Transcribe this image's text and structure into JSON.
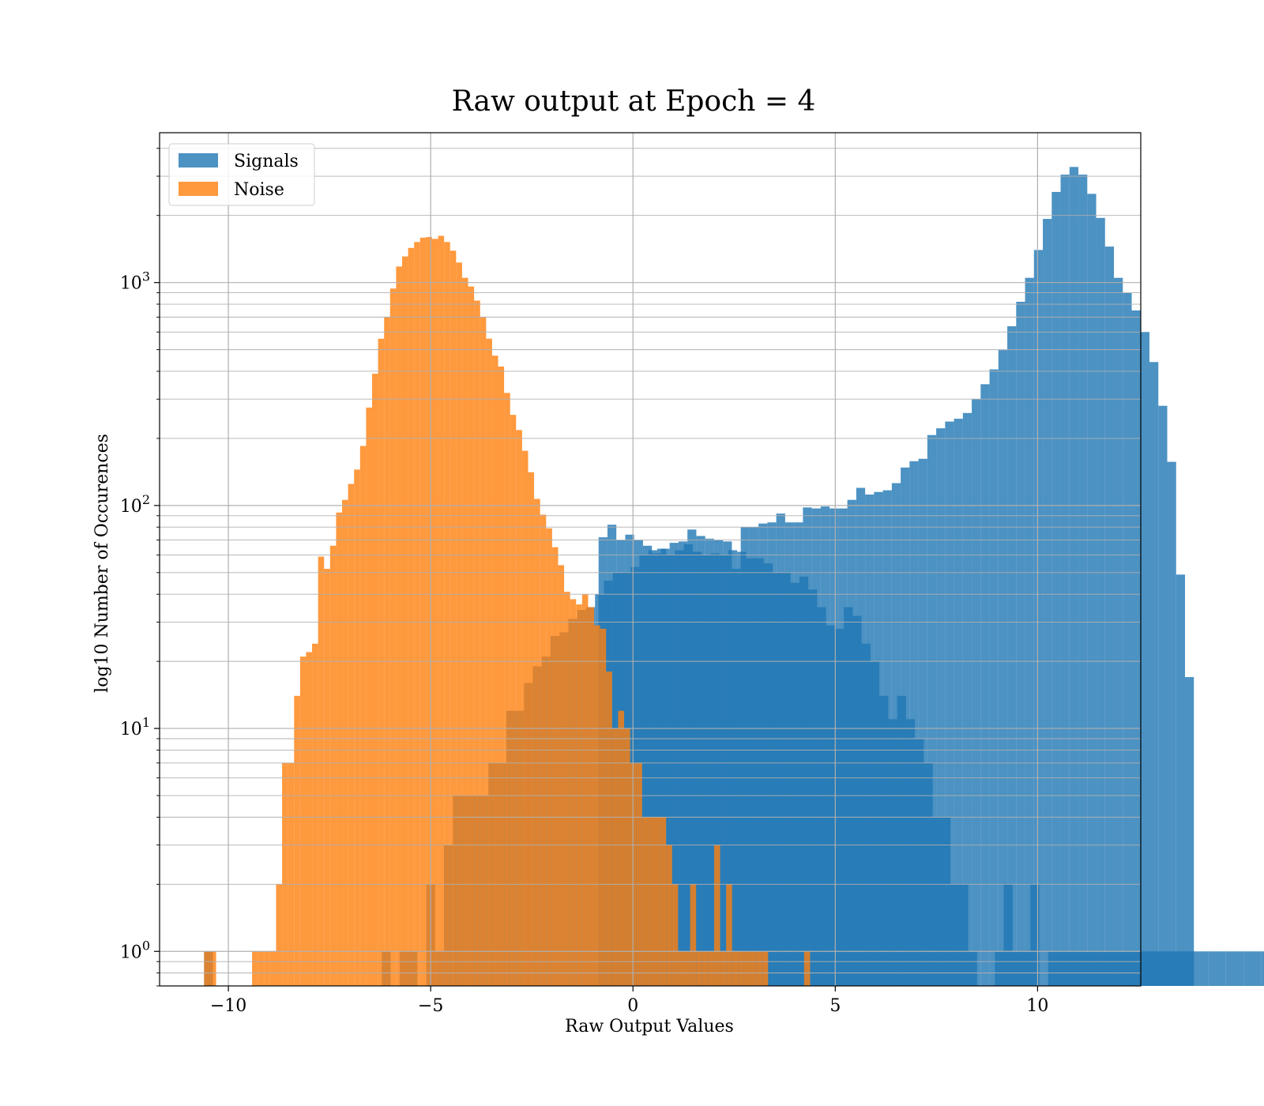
{
  "chart_data": {
    "type": "bar",
    "title": "Raw output at Epoch = 4",
    "xlabel": "Raw Output Values",
    "ylabel": "log10 Number of Occurences",
    "xlim": [
      -11.7,
      12.55
    ],
    "ylim": [
      0.7,
      4700
    ],
    "yscale": "log",
    "grid": true,
    "legend_position": "upper-left",
    "x_ticks": [
      -10,
      -5,
      0,
      5,
      10
    ],
    "x_tick_labels": [
      "−10",
      "−5",
      "0",
      "5",
      "10"
    ],
    "y_ticks": [
      {
        "value": 1,
        "base": "10",
        "exp": "0"
      },
      {
        "value": 10,
        "base": "10",
        "exp": "1"
      },
      {
        "value": 100,
        "base": "10",
        "exp": "2"
      },
      {
        "value": 1000,
        "base": "10",
        "exp": "3"
      }
    ],
    "series": [
      {
        "name": "Signals",
        "color": "#1f77b4",
        "opacity": 0.8,
        "bin_start": -10.6,
        "bin_width": 0.2196,
        "counts": [
          1,
          0,
          0,
          0,
          0,
          0,
          0,
          0,
          0,
          0,
          0,
          0,
          0,
          0,
          0,
          0,
          0,
          0,
          0,
          0,
          1,
          0,
          1,
          1,
          0,
          2,
          1,
          3,
          5,
          5,
          5,
          5,
          7,
          7,
          12,
          12,
          16,
          19,
          21,
          26,
          27,
          31,
          34,
          35,
          40,
          46,
          50,
          50,
          53,
          60,
          63,
          64,
          60,
          63,
          67,
          62,
          60,
          61,
          60,
          63,
          62,
          58,
          58,
          55,
          50,
          50,
          45,
          48,
          42,
          35,
          29,
          28,
          35,
          32,
          24,
          20,
          14,
          11,
          14,
          11,
          9,
          7,
          4,
          4,
          2,
          2,
          1,
          0,
          0,
          1,
          2,
          1,
          1,
          2,
          0,
          1,
          1,
          1,
          1,
          1,
          1,
          1,
          1,
          1,
          1,
          1,
          1,
          1,
          1,
          1,
          1,
          1,
          1,
          1,
          1,
          1,
          1,
          1,
          1,
          1,
          1,
          1,
          1,
          1,
          1,
          1,
          1,
          1,
          1,
          1,
          1,
          1,
          1,
          1,
          1,
          1,
          1,
          1,
          1,
          1,
          1,
          1,
          1,
          1,
          1,
          1,
          1,
          1,
          1
        ],
        "overlay_counts": [
          72,
          82,
          70,
          74,
          70,
          66,
          61,
          64,
          68,
          69,
          78,
          73,
          71,
          70,
          69,
          52,
          80,
          80,
          83,
          84,
          92,
          84,
          84,
          98,
          97,
          99,
          97,
          97,
          106,
          120,
          112,
          115,
          117,
          126,
          148,
          158,
          162,
          207,
          222,
          238,
          245,
          260,
          300,
          350,
          408,
          498,
          637,
          820,
          1050,
          1400,
          1930,
          2550,
          3050,
          3300,
          3050,
          2500,
          1950,
          1450,
          1050,
          900,
          750,
          600,
          440,
          280,
          157,
          49,
          17
        ]
      },
      {
        "name": "Noise",
        "color": "#ff7f0e",
        "opacity": 0.8,
        "bin_start": -10.6,
        "bin_width": 0.1483,
        "counts": [
          1,
          1,
          0,
          0,
          0,
          0,
          0,
          0,
          1,
          1,
          1,
          1,
          2,
          7,
          7,
          14,
          21,
          22,
          24,
          59,
          52,
          66,
          93,
          106,
          125,
          145,
          185,
          275,
          390,
          560,
          700,
          940,
          1180,
          1310,
          1430,
          1520,
          1590,
          1600,
          1570,
          1620,
          1520,
          1390,
          1230,
          1050,
          960,
          830,
          700,
          560,
          470,
          420,
          320,
          255,
          218,
          176,
          141,
          107,
          91,
          79,
          65,
          54,
          41,
          38,
          36,
          40,
          35,
          29,
          28,
          18,
          10,
          12,
          10,
          7,
          7,
          4,
          4,
          4,
          4,
          3,
          2,
          1,
          1,
          2,
          1,
          1,
          1,
          3,
          1,
          2,
          1,
          1,
          1,
          1,
          1,
          1,
          0,
          0,
          0,
          0,
          0,
          0,
          1,
          0,
          0,
          0,
          0,
          0,
          0,
          0,
          0,
          0,
          0,
          0,
          0,
          0,
          0,
          0,
          0,
          0,
          0,
          0,
          0,
          0,
          0,
          0,
          0,
          0,
          0,
          0,
          0,
          0,
          0,
          0,
          0,
          0,
          0,
          0,
          0,
          0,
          0,
          0,
          0,
          0,
          0,
          0,
          0,
          0,
          0,
          0,
          0,
          0,
          0,
          0,
          0,
          0,
          0,
          0,
          0
        ]
      }
    ]
  }
}
